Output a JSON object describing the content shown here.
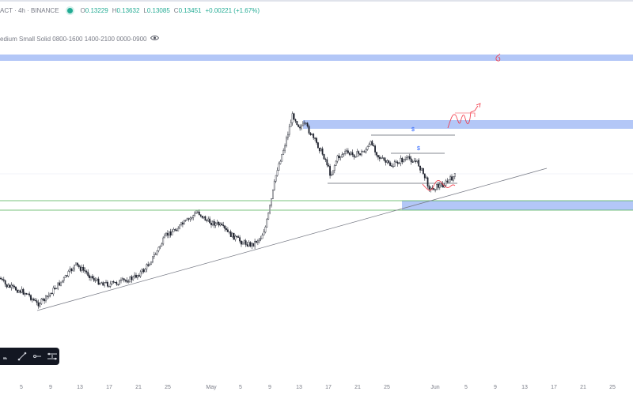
{
  "legend": {
    "symbol": "ACT · 4h · BINANCE",
    "open_label": "O",
    "open": "0.13229",
    "high_label": "H",
    "high": "0.13632",
    "low_label": "L",
    "low": "0.13085",
    "close_label": "C",
    "close": "0.13451",
    "change": "+0.00221 (+1.67%)",
    "status_color": "#22ab94"
  },
  "indicator": {
    "label": "edium Small Solid 0800-1600 1400-2100 0000-0900",
    "visibility_icon": "eye-icon"
  },
  "annotations": {
    "liquidity_mark_1": "$",
    "liquidity_mark_2": "$"
  },
  "xaxis": {
    "labels": [
      "5",
      "9",
      "13",
      "17",
      "21",
      "25",
      "May",
      "5",
      "9",
      "13",
      "17",
      "21",
      "25",
      "Jun",
      "5",
      "9",
      "13",
      "17",
      "21",
      "25"
    ]
  },
  "toolbar": {
    "tools": [
      "ruler-icon",
      "trend-line-icon",
      "horizontal-ray-icon",
      "measure-icon"
    ]
  },
  "colors": {
    "up": "#26a69a",
    "zone": "#b3c7f7",
    "trendline": "#787b86",
    "level_green": "#4caf50",
    "drawing_red": "#f23645",
    "marker_blue": "#2962ff"
  }
}
